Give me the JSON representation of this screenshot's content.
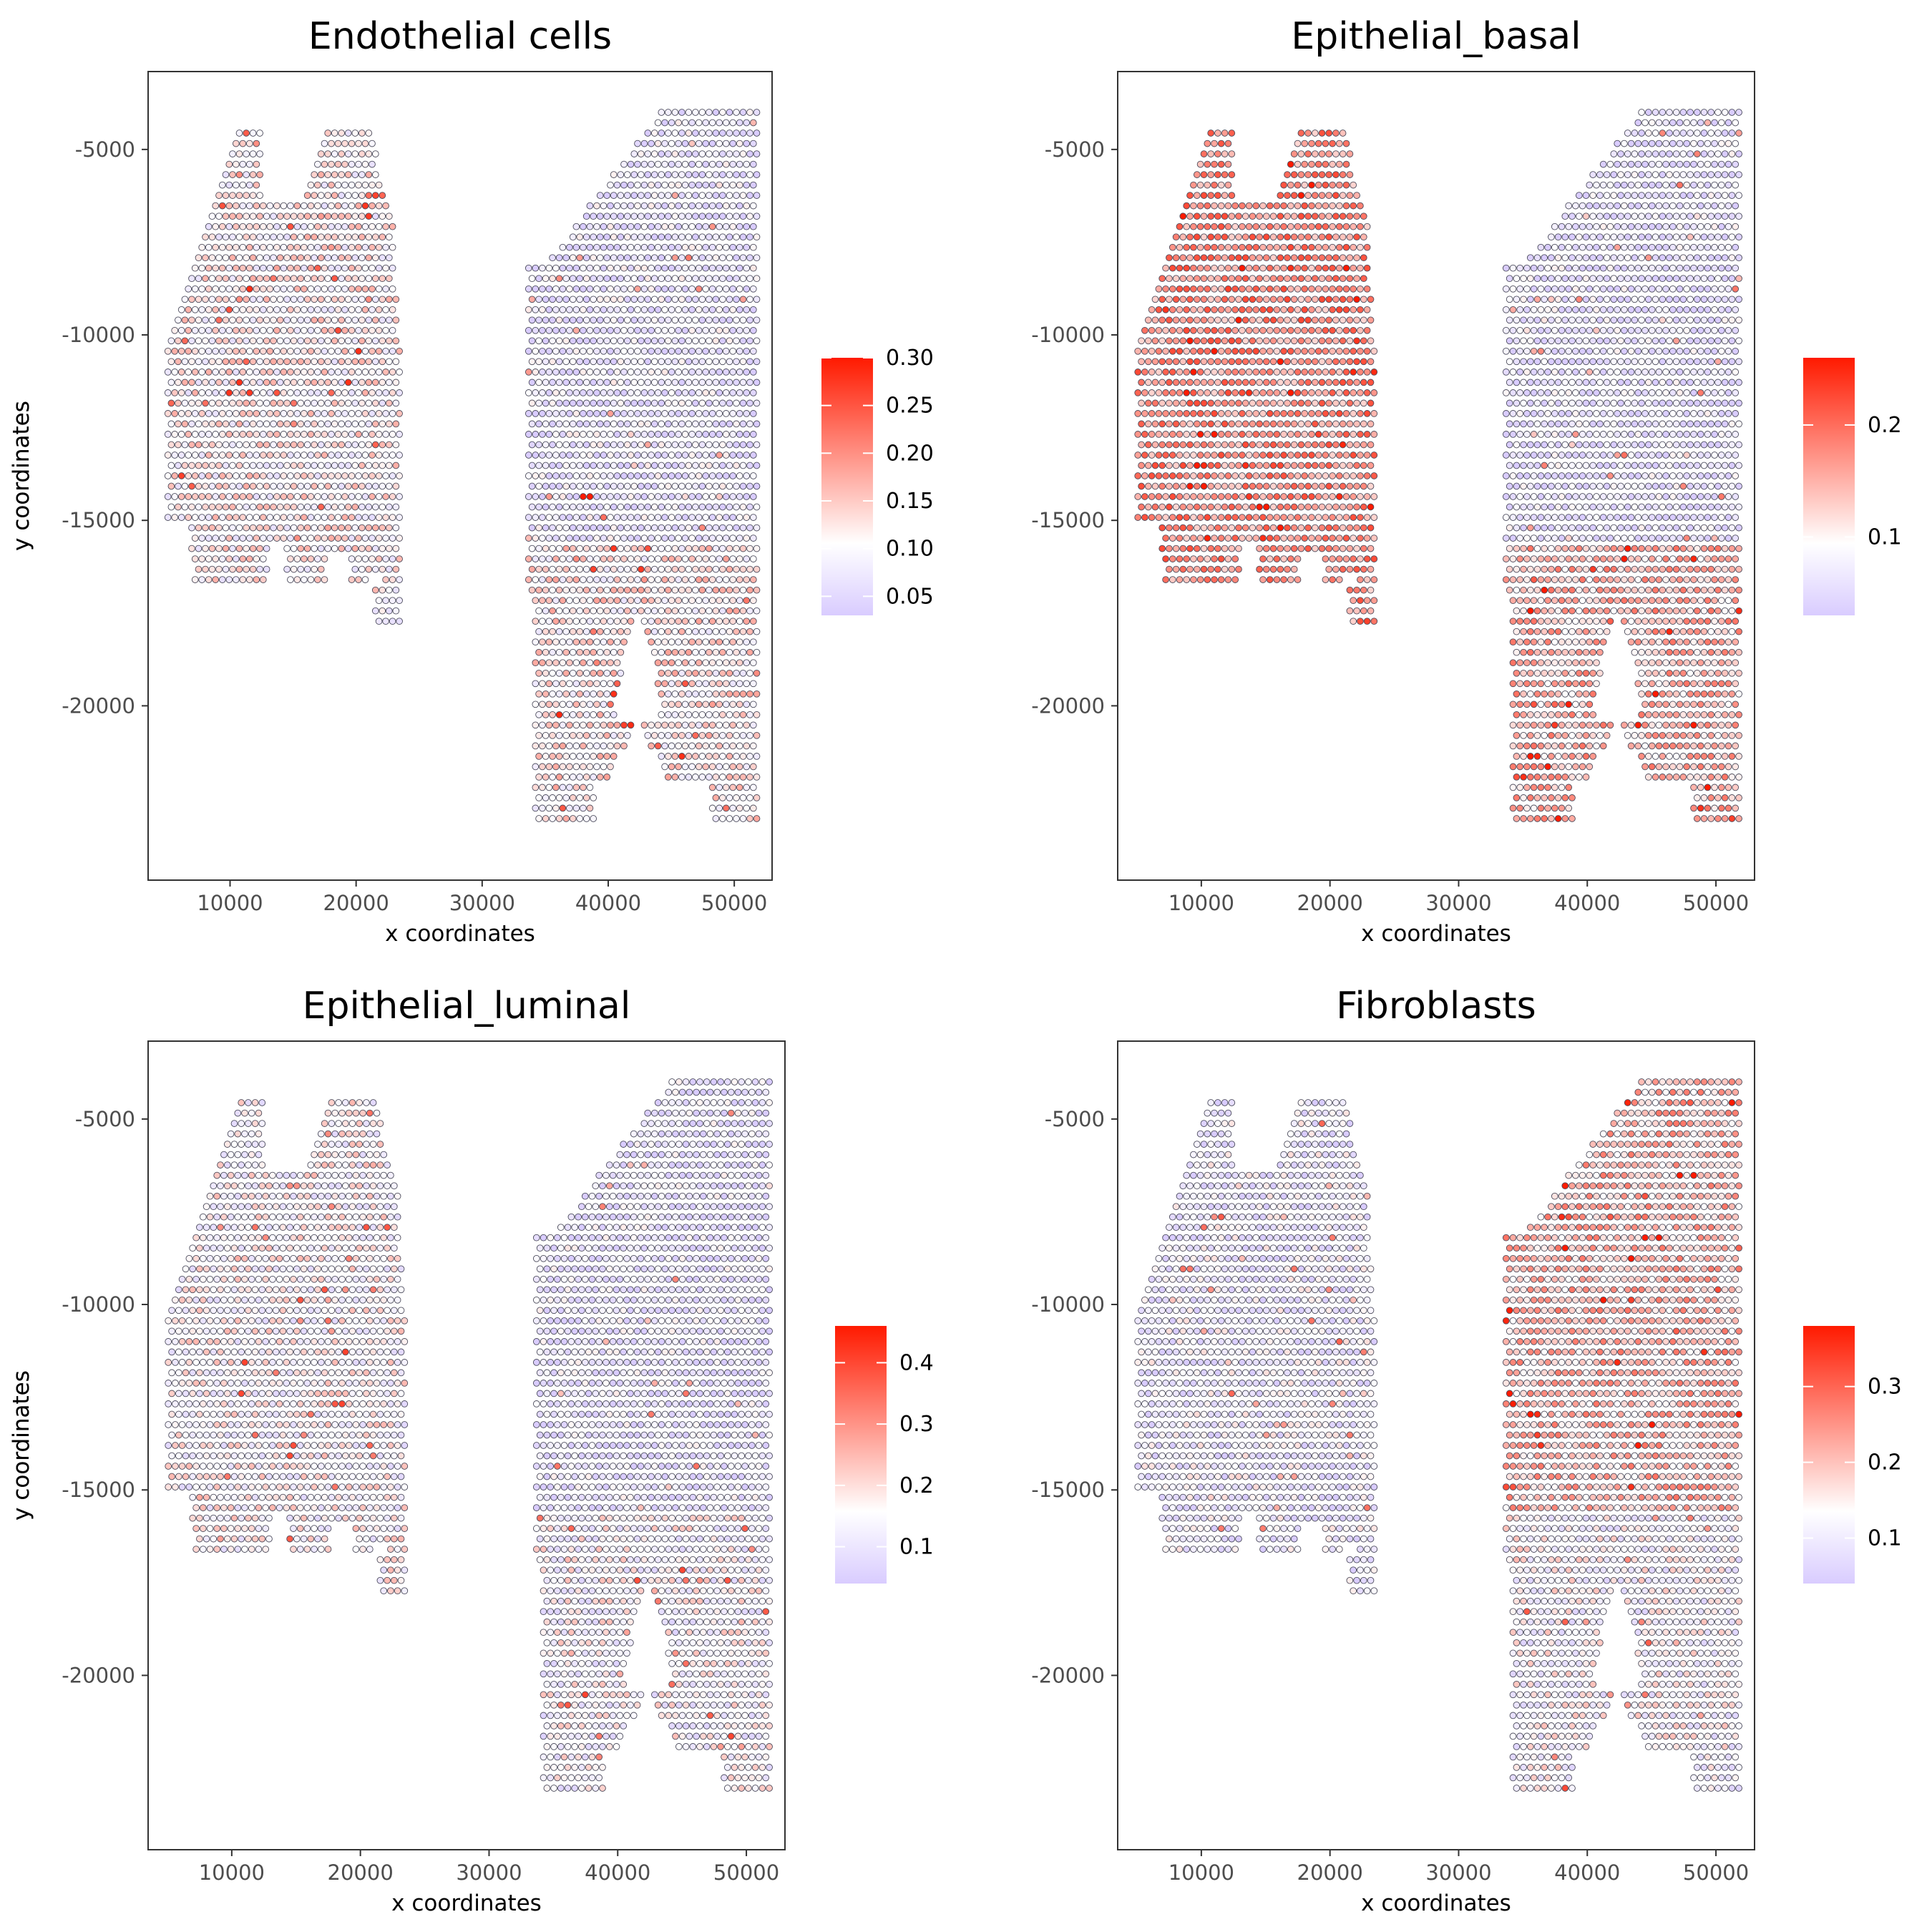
{
  "chart_data": [
    {
      "type": "scatter",
      "title": "Endothelial cells",
      "xlabel": "x coordinates",
      "ylabel": "y coordinates",
      "xlim": [
        3500,
        53000
      ],
      "ylim": [
        -24700,
        -2900
      ],
      "x_ticks": [
        10000,
        20000,
        30000,
        40000,
        50000
      ],
      "y_ticks": [
        -5000,
        -10000,
        -15000,
        -20000
      ],
      "x_tick_labels": [
        "10000",
        "20000",
        "30000",
        "40000",
        "50000"
      ],
      "y_tick_labels": [
        "-5000",
        "-10000",
        "-15000",
        "-20000"
      ],
      "grid": false,
      "legend_position": "right",
      "colorbar": {
        "range": [
          0.03,
          0.3
        ],
        "ticks": [
          0.05,
          0.1,
          0.15,
          0.2,
          0.25,
          0.3
        ],
        "tick_labels": [
          "0.05",
          "0.10",
          "0.15",
          "0.20",
          "0.25",
          "0.30"
        ],
        "colors": [
          "#d9ccff",
          "#ffffff",
          "#ff1a00"
        ]
      },
      "value_pattern": {
        "left_section": 0.11,
        "right_upper": 0.06,
        "right_lower": 0.12,
        "hotspot": {
          "x": 38200,
          "y": -14400,
          "value": 0.3
        }
      }
    },
    {
      "type": "scatter",
      "title": "Epithelial_basal",
      "xlabel": "x coordinates",
      "ylabel": "y coordinates",
      "xlim": [
        3500,
        53000
      ],
      "ylim": [
        -24700,
        -2900
      ],
      "x_ticks": [
        10000,
        20000,
        30000,
        40000,
        50000
      ],
      "y_ticks": [
        -5000,
        -10000,
        -15000,
        -20000
      ],
      "x_tick_labels": [
        "10000",
        "20000",
        "30000",
        "40000",
        "50000"
      ],
      "y_tick_labels": [
        "-5000",
        "-10000",
        "-15000",
        "-20000"
      ],
      "grid": false,
      "legend_position": "right",
      "colorbar": {
        "range": [
          0.03,
          0.26
        ],
        "ticks": [
          0.1,
          0.2
        ],
        "tick_labels": [
          "0.1",
          "0.2"
        ],
        "colors": [
          "#d9ccff",
          "#ffffff",
          "#ff1a00"
        ]
      },
      "value_pattern": {
        "left_section": 0.17,
        "right_upper": 0.05,
        "right_lower": 0.14
      }
    },
    {
      "type": "scatter",
      "title": "Epithelial_luminal",
      "xlabel": "x coordinates",
      "ylabel": "y coordinates",
      "xlim": [
        3500,
        53000
      ],
      "ylim": [
        -24700,
        -2900
      ],
      "x_ticks": [
        10000,
        20000,
        30000,
        40000,
        50000
      ],
      "y_ticks": [
        -5000,
        -10000,
        -15000,
        -20000
      ],
      "x_tick_labels": [
        "10000",
        "20000",
        "30000",
        "40000",
        "50000"
      ],
      "y_tick_labels": [
        "-5000",
        "-10000",
        "-15000",
        "-20000"
      ],
      "grid": false,
      "legend_position": "right",
      "colorbar": {
        "range": [
          0.04,
          0.46
        ],
        "ticks": [
          0.1,
          0.2,
          0.3,
          0.4
        ],
        "tick_labels": [
          "0.1",
          "0.2",
          "0.3",
          "0.4"
        ],
        "colors": [
          "#d9ccff",
          "#ffffff",
          "#ff1a00"
        ]
      },
      "value_pattern": {
        "left_section": 0.15,
        "right_upper": 0.08,
        "right_lower": 0.14
      }
    },
    {
      "type": "scatter",
      "title": "Fibroblasts",
      "xlabel": "x coordinates",
      "ylabel": "y coordinates",
      "xlim": [
        3500,
        53000
      ],
      "ylim": [
        -24700,
        -2900
      ],
      "x_ticks": [
        10000,
        20000,
        30000,
        40000,
        50000
      ],
      "y_ticks": [
        -5000,
        -10000,
        -15000,
        -20000
      ],
      "x_tick_labels": [
        "10000",
        "20000",
        "30000",
        "40000",
        "50000"
      ],
      "y_tick_labels": [
        "-5000",
        "-10000",
        "-15000",
        "-20000"
      ],
      "grid": false,
      "legend_position": "right",
      "colorbar": {
        "range": [
          0.04,
          0.38
        ],
        "ticks": [
          0.1,
          0.2,
          0.3
        ],
        "tick_labels": [
          "0.1",
          "0.2",
          "0.3"
        ],
        "colors": [
          "#d9ccff",
          "#ffffff",
          "#ff1a00"
        ]
      },
      "value_pattern": {
        "left_section": 0.09,
        "right_upper": 0.2,
        "right_lower": 0.12
      }
    }
  ]
}
